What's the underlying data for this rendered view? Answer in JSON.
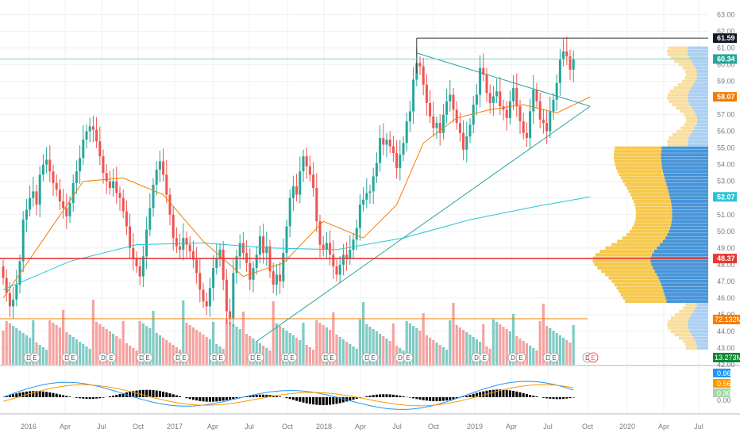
{
  "colors": {
    "up": "#26a69a",
    "down": "#ef5350",
    "vol_up": "#80cbc4",
    "vol_down": "#f4a3a1",
    "grid": "#eef0f3",
    "axis_text": "#787b86",
    "sma_fast": "#f57c00",
    "sma_slow": "#26c6da",
    "vp_up": "#3d8fd6",
    "vp_down": "#f5c542",
    "vp_up_light": "#a8cdf0",
    "vp_down_light": "#f8dc9a",
    "hline": "#e53935",
    "triangle": "#26a69a",
    "macd": "#2196f3",
    "signal": "#ff9800"
  },
  "chart_data": {
    "type": "candlestick",
    "x_tick_labels": [
      "2016",
      "Apr",
      "Jul",
      "Oct",
      "2017",
      "Apr",
      "Jul",
      "Oct",
      "2018",
      "Apr",
      "Jul",
      "Oct",
      "2019",
      "Apr",
      "Jul",
      "Oct",
      "2020",
      "Apr",
      "Jul"
    ],
    "y_tick_labels": [
      "43.00",
      "44.00",
      "45.00",
      "46.00",
      "47.00",
      "48.00",
      "49.00",
      "50.00",
      "51.00",
      "52.00",
      "53.00",
      "54.00",
      "55.00",
      "56.00",
      "57.00",
      "58.00",
      "59.00",
      "60.00",
      "61.00",
      "62.00",
      "63.00"
    ],
    "ylim": [
      42.0,
      63.5
    ],
    "price_labels": [
      {
        "value": 61.59,
        "text": "61.59",
        "color": "#131722"
      },
      {
        "value": 60.34,
        "text": "60.34",
        "color": "#26a69a"
      },
      {
        "value": 58.07,
        "text": "58.07",
        "color": "#f57c00"
      },
      {
        "value": 52.07,
        "text": "52.07",
        "color": "#26c6da"
      },
      {
        "value": 48.37,
        "text": "48.37",
        "color": "#e53935"
      }
    ],
    "volume_label": {
      "text": "72.132M",
      "color": "#f57c00"
    },
    "volume_label_2": {
      "text": "13.273M",
      "color": "#26a69a"
    },
    "macd_labels": [
      {
        "text": "0.86",
        "color": "#2196f3"
      },
      {
        "text": "0.56",
        "color": "#ff9800"
      },
      {
        "text": "0.30",
        "color": "#a5d6a7"
      }
    ],
    "macd_axis_label": "0.00",
    "below_price_label": "42.00",
    "event_markers": [
      "D",
      "E"
    ],
    "last_event_marker": "E",
    "close": [
      47.2,
      46.3,
      45.5,
      45.9,
      46.8,
      48.2,
      50.7,
      51.3,
      52.0,
      52.4,
      51.6,
      53.4,
      54.0,
      54.3,
      53.6,
      52.9,
      52.5,
      51.8,
      51.4,
      50.9,
      51.7,
      52.9,
      53.6,
      54.4,
      55.5,
      56.0,
      56.3,
      56.1,
      55.4,
      54.5,
      53.5,
      53.0,
      52.6,
      53.0,
      52.3,
      52.0,
      51.2,
      50.3,
      49.0,
      48.4,
      47.9,
      47.3,
      48.5,
      50.1,
      51.4,
      52.8,
      53.7,
      54.2,
      53.4,
      52.2,
      51.0,
      49.6,
      49.1,
      48.9,
      49.6,
      49.2,
      48.8,
      48.3,
      47.5,
      46.5,
      45.8,
      45.5,
      46.6,
      47.8,
      48.4,
      48.9,
      47.1,
      45.2,
      44.8,
      47.5,
      48.5,
      49.3,
      48.7,
      48.1,
      47.1,
      47.8,
      48.6,
      49.7,
      48.7,
      49.1,
      47.6,
      46.8,
      47.4,
      47.0,
      48.7,
      50.3,
      52.0,
      52.7,
      52.2,
      53.6,
      54.5,
      53.9,
      53.4,
      52.6,
      50.6,
      49.2,
      48.9,
      49.3,
      48.6,
      47.9,
      47.4,
      48.0,
      48.6,
      48.4,
      48.9,
      49.5,
      50.2,
      51.6,
      51.9,
      52.3,
      52.4,
      53.3,
      54.1,
      55.6,
      55.2,
      55.5,
      55.1,
      54.7,
      53.8,
      54.6,
      55.3,
      56.6,
      57.2,
      59.1,
      60.1,
      59.9,
      58.8,
      57.7,
      56.9,
      56.2,
      56.5,
      55.9,
      57.0,
      57.8,
      58.2,
      57.3,
      56.5,
      55.9,
      54.9,
      55.7,
      56.4,
      57.6,
      58.2,
      59.8,
      59.4,
      58.3,
      57.7,
      58.1,
      58.4,
      57.5,
      57.3,
      56.8,
      57.8,
      58.6,
      57.5,
      56.6,
      55.9,
      55.6,
      57.2,
      58.5,
      57.8,
      56.7,
      56.5,
      56.0,
      57.2,
      57.9,
      58.9,
      60.3,
      60.8,
      60.5,
      59.7,
      60.34
    ],
    "open": [
      47.9,
      47.2,
      46.3,
      45.5,
      45.9,
      46.8,
      48.2,
      50.7,
      51.3,
      52.0,
      52.4,
      51.6,
      53.4,
      54.0,
      54.3,
      53.6,
      52.9,
      52.5,
      51.8,
      51.4,
      50.9,
      51.7,
      52.9,
      53.6,
      54.4,
      55.5,
      56.0,
      56.3,
      56.1,
      55.4,
      54.5,
      53.5,
      53.0,
      52.6,
      53.0,
      52.3,
      52.0,
      51.2,
      50.3,
      49.0,
      48.4,
      47.9,
      47.3,
      48.5,
      50.1,
      51.4,
      52.8,
      53.7,
      54.2,
      53.4,
      52.2,
      51.0,
      49.6,
      49.1,
      48.9,
      49.6,
      49.2,
      48.8,
      48.3,
      47.5,
      46.5,
      45.8,
      45.5,
      46.6,
      47.8,
      48.4,
      48.9,
      47.1,
      45.2,
      44.8,
      47.5,
      48.5,
      49.3,
      48.7,
      48.1,
      47.1,
      47.8,
      48.6,
      49.7,
      48.7,
      49.1,
      47.6,
      46.8,
      47.4,
      47.0,
      48.7,
      50.3,
      52.0,
      52.7,
      52.2,
      53.6,
      54.5,
      53.9,
      53.4,
      52.6,
      50.6,
      49.2,
      48.9,
      49.3,
      48.6,
      47.9,
      47.4,
      48.0,
      48.6,
      48.4,
      48.9,
      49.5,
      50.2,
      51.6,
      51.9,
      52.3,
      52.4,
      53.3,
      54.1,
      55.6,
      55.2,
      55.5,
      55.1,
      54.7,
      53.8,
      54.6,
      55.3,
      56.6,
      57.2,
      59.1,
      60.1,
      59.9,
      58.8,
      57.7,
      56.9,
      56.2,
      56.5,
      55.9,
      57.0,
      57.8,
      58.2,
      57.3,
      56.5,
      55.9,
      54.9,
      55.7,
      56.4,
      57.6,
      58.2,
      59.8,
      59.4,
      58.3,
      57.7,
      58.1,
      58.4,
      57.5,
      57.3,
      56.8,
      57.8,
      58.6,
      57.5,
      56.6,
      55.9,
      55.6,
      57.2,
      58.5,
      57.8,
      56.7,
      56.5,
      56.0,
      57.2,
      57.9,
      58.9,
      60.3,
      60.8,
      60.5,
      59.7
    ],
    "sma_fast_points": [
      [
        0,
        46.0
      ],
      [
        12,
        49.5
      ],
      [
        24,
        53.0
      ],
      [
        36,
        53.2
      ],
      [
        48,
        52.2
      ],
      [
        60,
        49.4
      ],
      [
        72,
        47.3
      ],
      [
        84,
        48.1
      ],
      [
        96,
        50.6
      ],
      [
        108,
        49.6
      ],
      [
        118,
        51.6
      ],
      [
        126,
        55.3
      ],
      [
        136,
        56.8
      ],
      [
        146,
        57.3
      ],
      [
        156,
        57.6
      ],
      [
        166,
        57.1
      ],
      [
        176,
        58.07
      ]
    ],
    "sma_slow_points": [
      [
        0,
        46.5
      ],
      [
        20,
        48.2
      ],
      [
        40,
        49.2
      ],
      [
        60,
        49.3
      ],
      [
        80,
        49.0
      ],
      [
        100,
        48.9
      ],
      [
        120,
        49.6
      ],
      [
        140,
        50.7
      ],
      [
        160,
        51.5
      ],
      [
        176,
        52.07
      ]
    ],
    "triangle": {
      "upper": [
        [
          124,
          60.7
        ],
        [
          176,
          57.5
        ]
      ],
      "lower": [
        [
          76,
          43.4
        ],
        [
          176,
          57.5
        ]
      ],
      "top_hline": 61.59,
      "hline": 48.37
    },
    "annotation_hline_value": 60.34
  }
}
